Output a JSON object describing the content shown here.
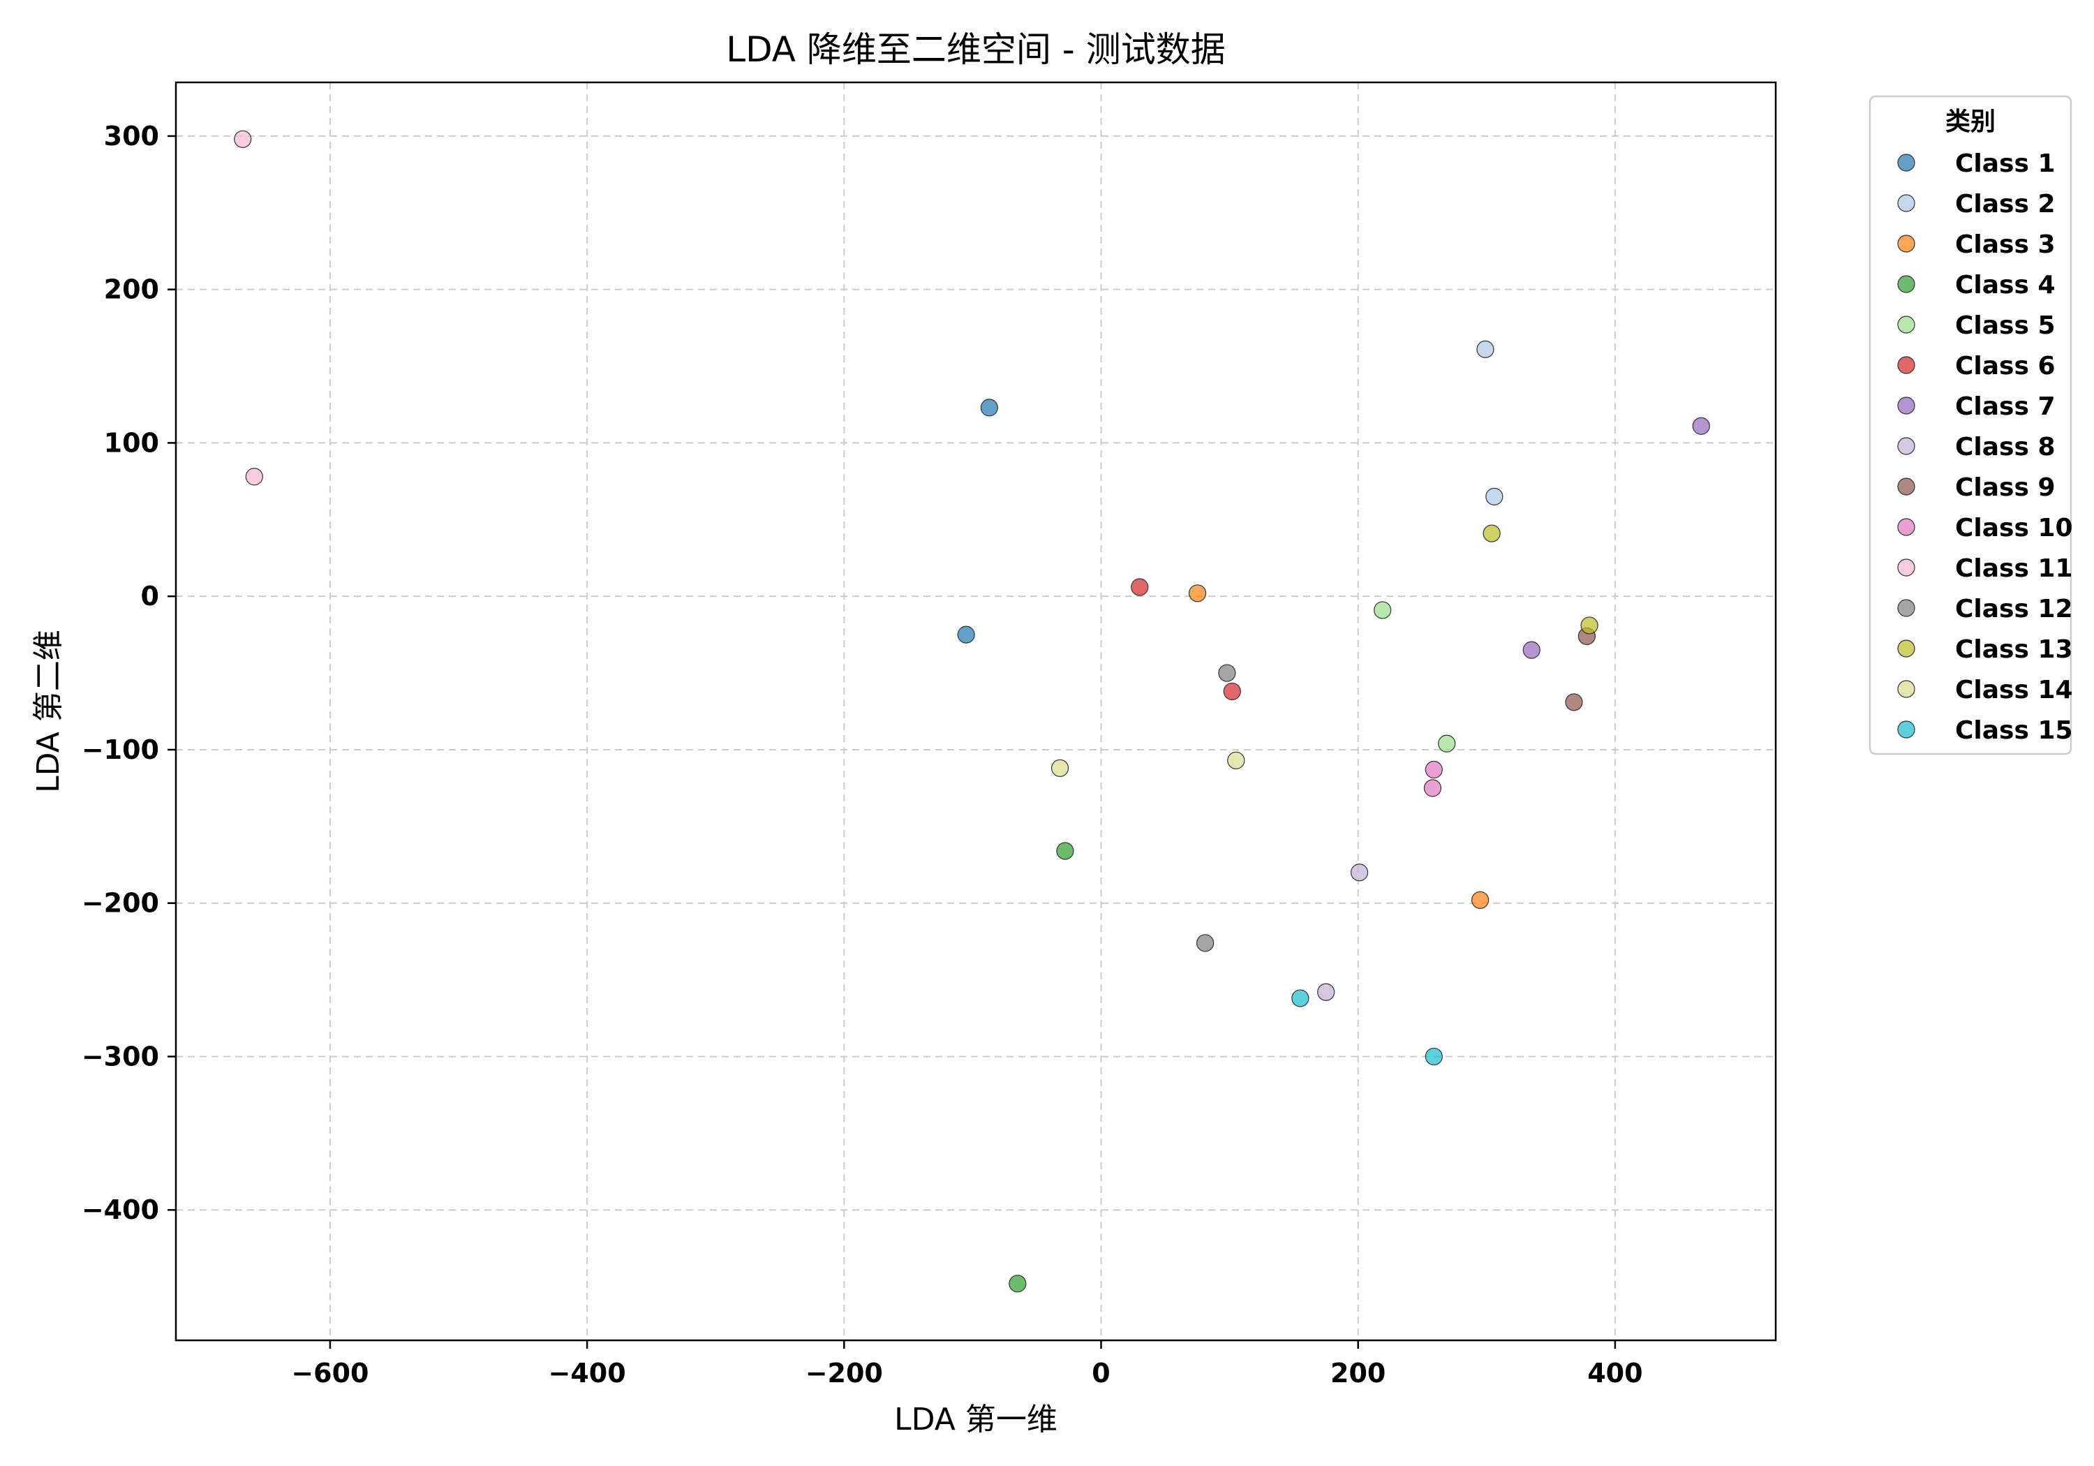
{
  "chart_data": {
    "type": "scatter",
    "title": "LDA 降维至二维空间 - 测试数据",
    "xlabel": "LDA 第一维",
    "ylabel": "LDA 第二维",
    "xlim": [
      -720,
      525
    ],
    "ylim": [
      -485,
      335
    ],
    "xticks": [
      -600,
      -400,
      -200,
      0,
      200,
      400
    ],
    "yticks": [
      300,
      200,
      100,
      0,
      -100,
      -200,
      -300,
      -400
    ],
    "xtick_labels": [
      "−600",
      "−400",
      "−200",
      "0",
      "200",
      "400"
    ],
    "ytick_labels": [
      "300",
      "200",
      "100",
      "0",
      "−100",
      "−200",
      "−300",
      "−400"
    ],
    "grid": true,
    "legend": {
      "title": "类别",
      "placement": "outside-right-top"
    },
    "series": [
      {
        "name": "Class 1",
        "color": "#1f77b4",
        "points": [
          [
            -87,
            123
          ],
          [
            -105,
            -25
          ]
        ]
      },
      {
        "name": "Class 2",
        "color": "#aec7e8",
        "points": [
          [
            299,
            161
          ],
          [
            306,
            65
          ]
        ]
      },
      {
        "name": "Class 3",
        "color": "#ff7f0e",
        "points": [
          [
            75,
            2
          ],
          [
            295,
            -198
          ]
        ]
      },
      {
        "name": "Class 4",
        "color": "#2ca02c",
        "points": [
          [
            -28,
            -166
          ],
          [
            -65,
            -448
          ]
        ]
      },
      {
        "name": "Class 5",
        "color": "#98df8a",
        "points": [
          [
            219,
            -9
          ],
          [
            269,
            -96
          ]
        ]
      },
      {
        "name": "Class 6",
        "color": "#d62728",
        "points": [
          [
            30,
            6
          ],
          [
            102,
            -62
          ]
        ]
      },
      {
        "name": "Class 7",
        "color": "#9467bd",
        "points": [
          [
            467,
            111
          ],
          [
            335,
            -35
          ]
        ]
      },
      {
        "name": "Class 8",
        "color": "#c5b0d5",
        "points": [
          [
            201,
            -180
          ],
          [
            175,
            -258
          ]
        ]
      },
      {
        "name": "Class 9",
        "color": "#8c564b",
        "points": [
          [
            378,
            -26
          ],
          [
            368,
            -69
          ]
        ]
      },
      {
        "name": "Class 10",
        "color": "#e377c2",
        "points": [
          [
            259,
            -113
          ],
          [
            258,
            -125
          ]
        ]
      },
      {
        "name": "Class 11",
        "color": "#f7b6d2",
        "points": [
          [
            -668,
            298
          ],
          [
            -659,
            78
          ]
        ]
      },
      {
        "name": "Class 12",
        "color": "#7f7f7f",
        "points": [
          [
            98,
            -50
          ],
          [
            81,
            -226
          ]
        ]
      },
      {
        "name": "Class 13",
        "color": "#bcbd22",
        "points": [
          [
            304,
            41
          ],
          [
            380,
            -19
          ]
        ]
      },
      {
        "name": "Class 14",
        "color": "#dbdb8d",
        "points": [
          [
            -32,
            -112
          ],
          [
            105,
            -107
          ]
        ]
      },
      {
        "name": "Class 15",
        "color": "#17becf",
        "points": [
          [
            155,
            -262
          ],
          [
            259,
            -300
          ]
        ]
      }
    ]
  }
}
